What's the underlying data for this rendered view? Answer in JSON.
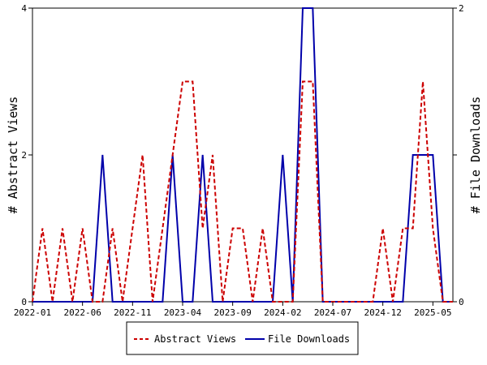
{
  "chart_data": {
    "type": "line",
    "ylabel_left": "# Abstract Views",
    "ylabel_right": "# File Downloads",
    "x_tick_labels": [
      "2022-01",
      "2022-06",
      "2022-11",
      "2023-04",
      "2023-09",
      "2024-02",
      "2024-07",
      "2024-12",
      "2025-05"
    ],
    "x_range": [
      "2022-01",
      "2025-07"
    ],
    "y_left_range": [
      0,
      4
    ],
    "y_left_ticks": [
      "0",
      "2",
      "4"
    ],
    "y_right_range": [
      0,
      2
    ],
    "y_right_ticks": [
      "0",
      "1",
      "2"
    ],
    "legend_position": "bottom",
    "grid": false,
    "months": [
      "2022-01",
      "2022-02",
      "2022-03",
      "2022-04",
      "2022-05",
      "2022-06",
      "2022-07",
      "2022-08",
      "2022-09",
      "2022-10",
      "2022-11",
      "2022-12",
      "2023-01",
      "2023-02",
      "2023-03",
      "2023-04",
      "2023-05",
      "2023-06",
      "2023-07",
      "2023-08",
      "2023-09",
      "2023-10",
      "2023-11",
      "2023-12",
      "2024-01",
      "2024-02",
      "2024-03",
      "2024-04",
      "2024-05",
      "2024-06",
      "2024-07",
      "2024-08",
      "2024-09",
      "2024-10",
      "2024-11",
      "2024-12",
      "2025-01",
      "2025-02",
      "2025-03",
      "2025-04",
      "2025-05",
      "2025-06",
      "2025-07"
    ],
    "series": [
      {
        "name": "Abstract Views",
        "axis": "left",
        "color": "#cc0000",
        "dash": true,
        "values": [
          0,
          1,
          0,
          1,
          0,
          1,
          0,
          0,
          1,
          0,
          1,
          2,
          0,
          1,
          2,
          3,
          3,
          1,
          2,
          0,
          1,
          1,
          0,
          1,
          0,
          0,
          0,
          3,
          3,
          0,
          0,
          0,
          0,
          0,
          0,
          1,
          0,
          1,
          1,
          3,
          1,
          0,
          0
        ]
      },
      {
        "name": "File Downloads",
        "axis": "right",
        "color": "#0000aa",
        "dash": false,
        "values": [
          0,
          0,
          0,
          0,
          0,
          0,
          0,
          1,
          0,
          0,
          0,
          0,
          0,
          0,
          1,
          0,
          0,
          1,
          0,
          0,
          0,
          0,
          0,
          0,
          0,
          1,
          0,
          2,
          2,
          0,
          0,
          0,
          0,
          0,
          0,
          0,
          0,
          0,
          1,
          1,
          1,
          0,
          0
        ]
      }
    ]
  }
}
